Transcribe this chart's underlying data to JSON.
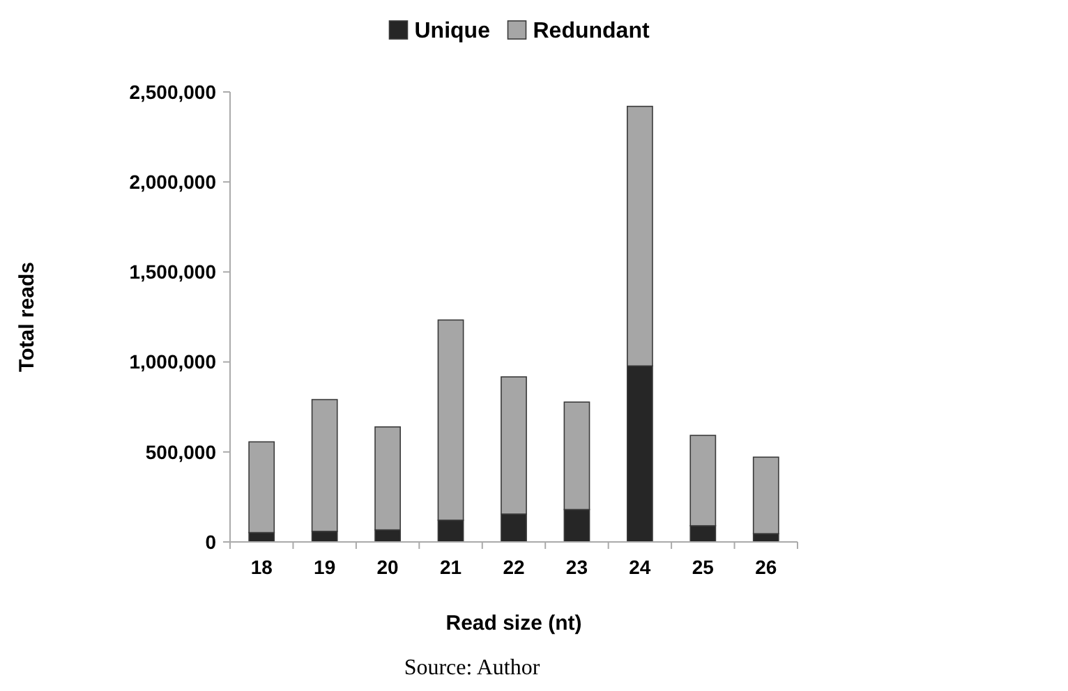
{
  "chart_data": {
    "type": "bar",
    "stacked": true,
    "xlabel": "Read size (nt)",
    "ylabel": "Total reads",
    "categories": [
      "18",
      "19",
      "20",
      "21",
      "22",
      "23",
      "24",
      "25",
      "26"
    ],
    "series": [
      {
        "name": "Unique",
        "color": "#262626",
        "values": [
          52000,
          59000,
          67000,
          121000,
          155000,
          180000,
          978000,
          90000,
          46000
        ]
      },
      {
        "name": "Redundant",
        "color": "#a6a6a6",
        "values": [
          504000,
          732000,
          572000,
          1112000,
          762000,
          597000,
          1442000,
          502000,
          425000
        ]
      }
    ],
    "ylim": [
      0,
      2500000
    ],
    "yticks": [
      {
        "value": 0,
        "label": "0"
      },
      {
        "value": 500000,
        "label": "500,000"
      },
      {
        "value": 1000000,
        "label": "1,000,000"
      },
      {
        "value": 1500000,
        "label": "1,500,000"
      },
      {
        "value": 2000000,
        "label": "2,000,000"
      },
      {
        "value": 2500000,
        "label": "2,500,000"
      }
    ],
    "legend": "top",
    "grid": false,
    "annotations": [
      "Source: Author"
    ]
  }
}
